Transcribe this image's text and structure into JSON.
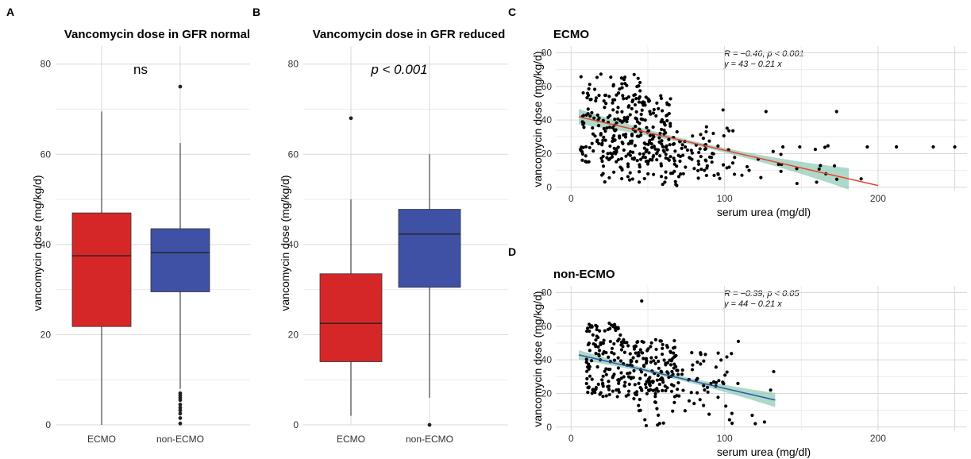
{
  "panels": {
    "A": {
      "letter": "A",
      "chart_data": {
        "type": "box",
        "title": "Vancomycin dose in GFR normal",
        "ylabel": "vancomycin dose (mg/kg/d)",
        "ylim": [
          0,
          84
        ],
        "yticks": [
          0,
          20,
          40,
          60,
          80
        ],
        "categories": [
          "ECMO",
          "non-ECMO"
        ],
        "colors": [
          "#d62728",
          "#3f51a5"
        ],
        "boxes": [
          {
            "category": "ECMO",
            "min": 0,
            "q1": 21.8,
            "median": 37.5,
            "q3": 47,
            "max": 69.5,
            "outliers": []
          },
          {
            "category": "non-ECMO",
            "min": 8,
            "q1": 29.5,
            "median": 38.2,
            "q3": 43.5,
            "max": 62.5,
            "outliers": [
              75,
              7,
              6.5,
              6,
              5.5,
              4.5,
              3.8,
              3.2,
              2.5,
              1.5,
              0.3
            ]
          }
        ],
        "annotation": "ns"
      }
    },
    "B": {
      "letter": "B",
      "chart_data": {
        "type": "box",
        "title": "Vancomycin dose in GFR reduced",
        "ylabel": "vancomycin dose (mg/kg/d)",
        "ylim": [
          0,
          84
        ],
        "yticks": [
          0,
          20,
          40,
          60,
          80
        ],
        "categories": [
          "ECMO",
          "non-ECMO"
        ],
        "colors": [
          "#d62728",
          "#3f51a5"
        ],
        "boxes": [
          {
            "category": "ECMO",
            "min": 2,
            "q1": 14,
            "median": 22.5,
            "q3": 33.5,
            "max": 50,
            "outliers": [
              68
            ]
          },
          {
            "category": "non-ECMO",
            "min": 6,
            "q1": 30.5,
            "median": 42.3,
            "q3": 47.8,
            "max": 60,
            "outliers": [
              0
            ]
          }
        ],
        "annotation": "p < 0.001"
      }
    },
    "C": {
      "letter": "C",
      "chart_data": {
        "type": "scatter",
        "title": "ECMO",
        "xlabel": "serum urea (mg/dl)",
        "ylabel": "vancomycin dose (mg/kg/d)",
        "xlim": [
          -10,
          258
        ],
        "ylim": [
          -2,
          84
        ],
        "xticks": [
          0,
          100,
          200
        ],
        "yticks": [
          0,
          20,
          40,
          60,
          80
        ],
        "stat_line1": "R = −0.46, p < 0.001",
        "stat_line2": "y = 43 − 0.21 x",
        "regression": {
          "intercept": 43,
          "slope": -0.21,
          "x_range": [
            5,
            200
          ],
          "ci_end": 182,
          "color": "#e8402e",
          "band_color": "#8cc9b3"
        },
        "point_color": "#000000",
        "clusters": [
          {
            "n": 230,
            "x": [
              6,
              65
            ],
            "y": [
              15,
              55
            ],
            "seed": 11
          },
          {
            "n": 70,
            "x": [
              20,
              75
            ],
            "y": [
              0,
              28
            ],
            "seed": 12
          },
          {
            "n": 40,
            "x": [
              6,
              45
            ],
            "y": [
              50,
              68
            ],
            "seed": 13
          },
          {
            "n": 70,
            "x": [
              60,
              110
            ],
            "y": [
              5,
              38
            ],
            "seed": 14
          },
          {
            "n": 20,
            "x": [
              105,
              175
            ],
            "y": [
              2,
              25
            ],
            "seed": 15
          }
        ],
        "extra_points": [
          [
            127,
            45
          ],
          [
            173,
            45
          ],
          [
            193,
            24
          ],
          [
            212,
            24
          ],
          [
            236,
            24
          ],
          [
            250,
            24
          ],
          [
            138,
            24
          ],
          [
            149,
            24
          ],
          [
            166,
            8
          ],
          [
            160,
            3
          ],
          [
            189,
            5
          ],
          [
            99,
            46
          ],
          [
            88,
            33
          ]
        ]
      }
    },
    "D": {
      "letter": "D",
      "chart_data": {
        "type": "scatter",
        "title": "non-ECMO",
        "xlabel": "serum urea (mg/dl)",
        "ylabel": "vancomycin dose (mg/kg/d)",
        "xlim": [
          -10,
          258
        ],
        "ylim": [
          -2,
          84
        ],
        "xticks": [
          0,
          100,
          200
        ],
        "yticks": [
          0,
          20,
          40,
          60,
          80
        ],
        "stat_line1": "R = −0.39, p < 0.05",
        "stat_line2": "y = 44 − 0.21 x",
        "regression": {
          "intercept": 44,
          "slope": -0.21,
          "x_range": [
            5,
            133
          ],
          "ci_end": 133,
          "color": "#2f55a4",
          "band_color": "#8cc9b3"
        },
        "point_color": "#000000",
        "clusters": [
          {
            "n": 230,
            "x": [
              10,
              70
            ],
            "y": [
              18,
              52
            ],
            "seed": 21
          },
          {
            "n": 40,
            "x": [
              10,
              35
            ],
            "y": [
              48,
              62
            ],
            "seed": 22
          },
          {
            "n": 45,
            "x": [
              40,
              105
            ],
            "y": [
              0,
              30
            ],
            "seed": 23
          },
          {
            "n": 40,
            "x": [
              60,
              110
            ],
            "y": [
              20,
              45
            ],
            "seed": 24
          }
        ],
        "extra_points": [
          [
            46,
            75
          ],
          [
            109,
            51
          ],
          [
            132,
            33
          ],
          [
            130,
            22
          ],
          [
            126,
            3
          ],
          [
            120,
            2
          ],
          [
            118,
            7
          ]
        ]
      }
    }
  }
}
